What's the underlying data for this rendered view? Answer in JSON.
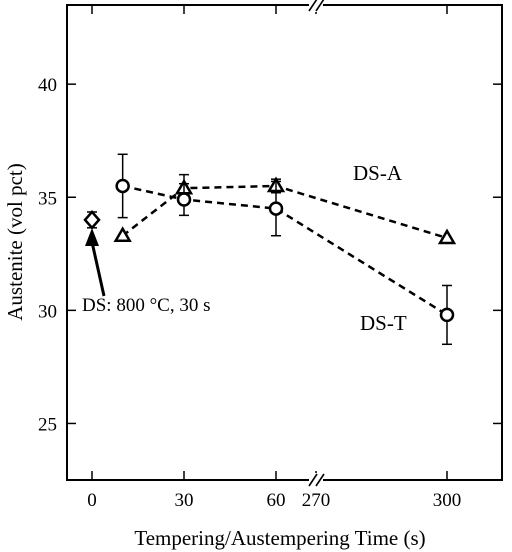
{
  "chart_data": {
    "type": "scatter",
    "title": "",
    "xlabel": "Tempering/Austempering Time (s)",
    "ylabel": "Austenite (vol pct)",
    "ylim": [
      22.5,
      43.5
    ],
    "y_ticks": [
      25,
      30,
      35,
      40
    ],
    "x_ticks": [
      0,
      30,
      60,
      270,
      300
    ],
    "x_axis_break": "between 60 and 270",
    "grid": false,
    "series": [
      {
        "name": "DS-A",
        "marker": "triangle",
        "line": "dashed",
        "points": [
          {
            "x": 10,
            "y": 33.3,
            "err": 0
          },
          {
            "x": 30,
            "y": 35.4,
            "err": 0.6
          },
          {
            "x": 60,
            "y": 35.5,
            "err": 0.3
          },
          {
            "x": 300,
            "y": 33.2,
            "err": 0
          }
        ]
      },
      {
        "name": "DS-T",
        "marker": "circle",
        "line": "dashed",
        "points": [
          {
            "x": 10,
            "y": 35.5,
            "err": 1.4
          },
          {
            "x": 30,
            "y": 34.9,
            "err": 0.7
          },
          {
            "x": 60,
            "y": 34.5,
            "err": 1.2
          },
          {
            "x": 300,
            "y": 29.8,
            "err": 1.3
          }
        ]
      },
      {
        "name": "",
        "marker": "diamond",
        "line": "none",
        "points": [
          {
            "x": 0,
            "y": 34.0,
            "err": 0.35
          }
        ]
      }
    ],
    "annotations": [
      {
        "text": "DS: 800 °C, 30 s",
        "target_x": 0,
        "target_y": 33.2
      }
    ]
  }
}
